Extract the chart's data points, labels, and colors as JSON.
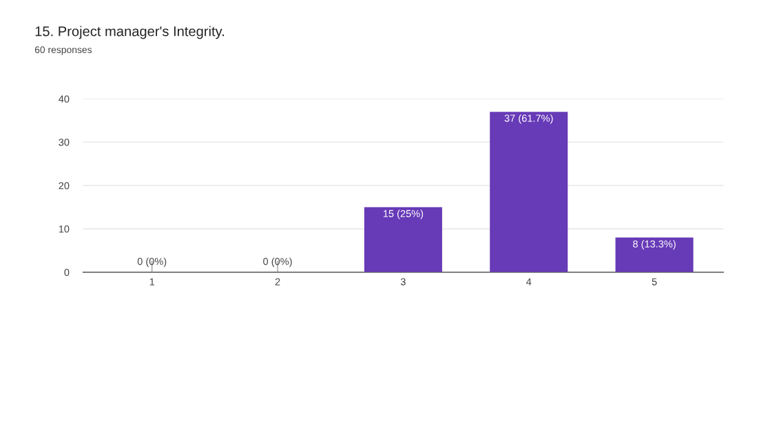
{
  "chart_data": {
    "type": "bar",
    "title": "15. Project manager's Integrity.",
    "subtitle": "60 responses",
    "categories": [
      "1",
      "2",
      "3",
      "4",
      "5"
    ],
    "values": [
      0,
      0,
      15,
      37,
      8
    ],
    "value_labels": [
      "0 (0%)",
      "0 (0%)",
      "15 (25%)",
      "37 (61.7%)",
      "8 (13.3%)"
    ],
    "color": "#673ab7",
    "ylim": [
      0,
      40
    ],
    "yticks": [
      0,
      10,
      20,
      30,
      40
    ],
    "grid": "y",
    "legend": false
  }
}
